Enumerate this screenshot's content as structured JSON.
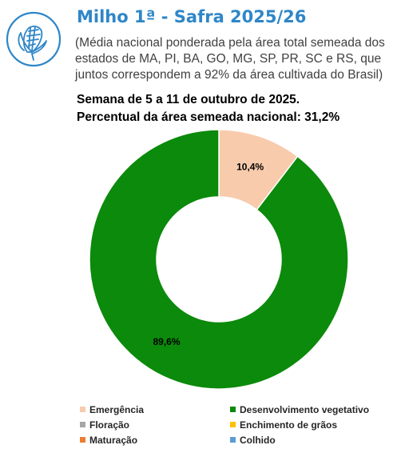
{
  "header": {
    "title": "Milho 1ª - Safra 2025/26",
    "subtitle": "(Média nacional ponderada pela área total semeada dos estados de MA, PI, BA, GO, MG, SP, PR, SC e RS, que juntos correspondem a 92% da área cultivada do Brasil)",
    "week": "Semana de 5 a 11 de outubro de 2025.",
    "national_pct": "Percentual da área semeada nacional: 31,2%",
    "icon": "corn-icon",
    "accent": "#2e86c8"
  },
  "chart_data": {
    "type": "pie",
    "donut": true,
    "categories": [
      "Emergência",
      "Desenvolvimento vegetativo",
      "Floração",
      "Enchimento de grãos",
      "Maturação",
      "Colhido"
    ],
    "values": [
      10.4,
      89.6,
      0,
      0,
      0,
      0
    ],
    "labels": [
      "10,4%",
      "89,6%",
      "",
      "",
      "",
      ""
    ],
    "colors": [
      "#f8cbad",
      "#0b8a0b",
      "#a6a6a6",
      "#ffc000",
      "#ed7d31",
      "#5b9bd5"
    ],
    "legend_position": "bottom"
  }
}
